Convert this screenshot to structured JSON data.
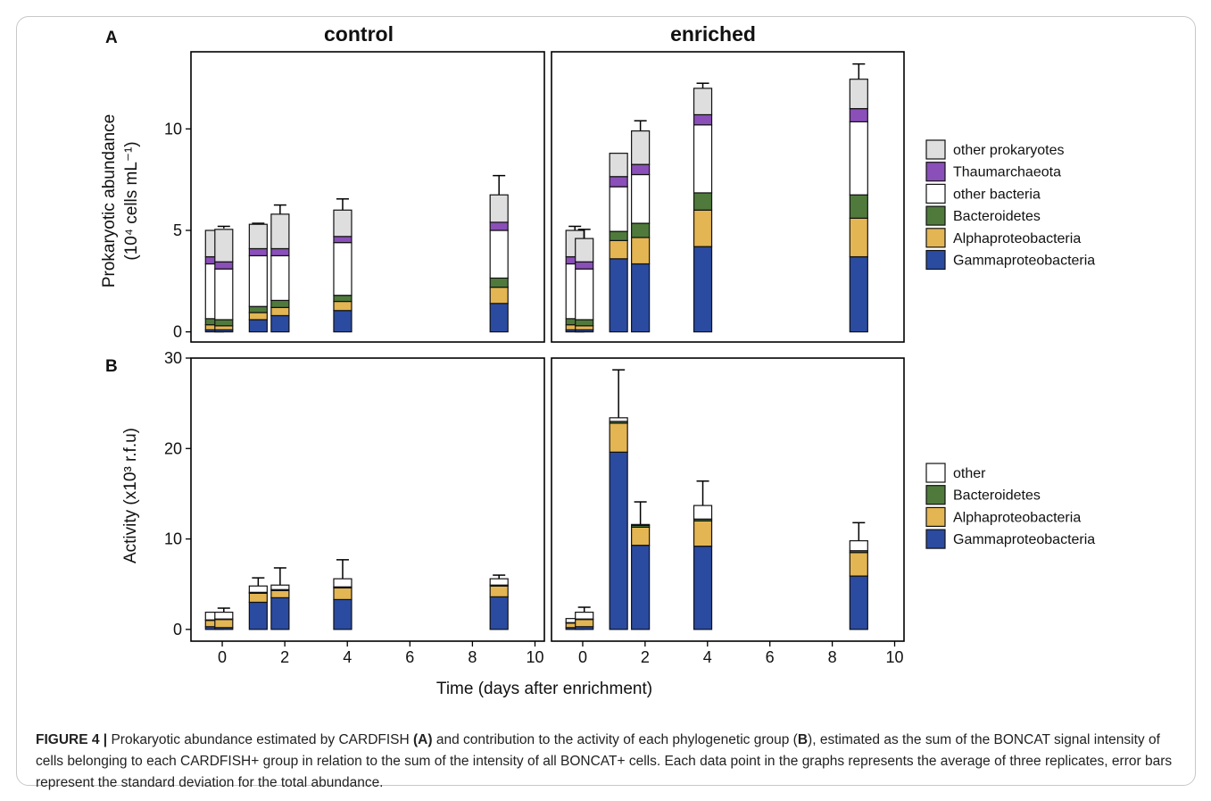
{
  "figure": {
    "panel_a_letter": "A",
    "panel_b_letter": "B",
    "facet_control": "control",
    "facet_enriched": "enriched",
    "x_axis_title": "Time (days after enrichment)",
    "a_y_label_line1": "Prokaryotic abundance",
    "a_y_label_line2": "(10⁴ cells mL⁻¹)",
    "b_y_label": "Activity (x10³ r.f.u)"
  },
  "caption": {
    "label": "FIGURE 4 |",
    "part1": " Prokaryotic abundance estimated by CARDFISH ",
    "a_ref": "(A)",
    "part2": " and contribution to the activity of each phylogenetic group (",
    "b_ref": "B",
    "part3": "), estimated as the sum of the BONCAT signal intensity of cells belonging to each CARDFISH+ group in relation to the sum of the intensity of all BONCAT+ cells. Each data point in the graphs represents the average of three replicates, error bars represent the standard deviation for the total abundance."
  },
  "colors": {
    "Gammaproteobacteria": "#2b4ba0",
    "Alphaproteobacteria": "#e3b553",
    "Bacteroidetes": "#4f7a3c",
    "other bacteria": "#ffffff",
    "Thaumarchaeota": "#8a4fb8",
    "other prokaryotes": "#dedede",
    "other": "#ffffff"
  },
  "chart_data": [
    {
      "type": "bar",
      "panel": "A",
      "stacked": true,
      "facets": [
        "control",
        "enriched"
      ],
      "xlabel": "Time (days after enrichment)",
      "ylabel": "Prokaryotic abundance (10⁴ cells mL⁻¹)",
      "ylim": [
        -0.5,
        13.8
      ],
      "y_ticks": [
        0,
        5,
        10
      ],
      "x_ticks": [
        0,
        2,
        4,
        6,
        8,
        10
      ],
      "xlim": [
        -1,
        10.3
      ],
      "series_order": [
        "Gammaproteobacteria",
        "Alphaproteobacteria",
        "Bacteroidetes",
        "other bacteria",
        "Thaumarchaeota",
        "other prokaryotes"
      ],
      "legend": [
        "other prokaryotes",
        "Thaumarchaeota",
        "other bacteria",
        "Bacteroidetes",
        "Alphaproteobacteria",
        "Gammaproteobacteria"
      ],
      "legend_position": "right",
      "data": {
        "control": [
          {
            "x": -0.25,
            "total": 5.0,
            "err": 0.0,
            "values": [
              0.1,
              0.25,
              0.3,
              2.7,
              0.35,
              1.3
            ]
          },
          {
            "x": 0.05,
            "total": 5.1,
            "err": 0.1,
            "values": [
              0.1,
              0.2,
              0.3,
              2.5,
              0.35,
              1.6
            ]
          },
          {
            "x": 1.15,
            "total": 5.3,
            "err": 0.05,
            "values": [
              0.6,
              0.35,
              0.3,
              2.5,
              0.35,
              1.2
            ]
          },
          {
            "x": 1.85,
            "total": 5.8,
            "err": 0.45,
            "values": [
              0.8,
              0.4,
              0.35,
              2.2,
              0.35,
              1.7
            ]
          },
          {
            "x": 3.85,
            "total": 6.0,
            "err": 0.55,
            "values": [
              1.05,
              0.45,
              0.3,
              2.6,
              0.3,
              1.3
            ]
          },
          {
            "x": 8.85,
            "total": 6.75,
            "err": 0.95,
            "values": [
              1.4,
              0.8,
              0.45,
              2.35,
              0.4,
              1.35
            ]
          }
        ],
        "enriched": [
          {
            "x": -0.25,
            "total": 5.0,
            "err": 0.2,
            "values": [
              0.1,
              0.25,
              0.3,
              2.7,
              0.35,
              1.3
            ]
          },
          {
            "x": 0.05,
            "total": 4.6,
            "err": 0.45,
            "values": [
              0.1,
              0.2,
              0.3,
              2.5,
              0.35,
              1.15
            ]
          },
          {
            "x": 1.15,
            "total": 8.8,
            "err": 0.0,
            "values": [
              3.6,
              0.9,
              0.45,
              2.2,
              0.5,
              1.15
            ]
          },
          {
            "x": 1.85,
            "total": 9.9,
            "err": 0.5,
            "values": [
              3.35,
              1.3,
              0.7,
              2.4,
              0.5,
              1.65
            ]
          },
          {
            "x": 3.85,
            "total": 12.0,
            "err": 0.25,
            "values": [
              4.2,
              1.8,
              0.85,
              3.35,
              0.5,
              1.3
            ]
          },
          {
            "x": 8.85,
            "total": 12.45,
            "err": 0.75,
            "values": [
              3.7,
              1.9,
              1.15,
              3.6,
              0.65,
              1.45
            ]
          }
        ]
      }
    },
    {
      "type": "bar",
      "panel": "B",
      "stacked": true,
      "facets": [
        "control",
        "enriched"
      ],
      "xlabel": "Time (days after enrichment)",
      "ylabel": "Activity (x10³ r.f.u)",
      "ylim": [
        -1.3,
        30
      ],
      "y_ticks": [
        0,
        10,
        20,
        30
      ],
      "x_ticks": [
        0,
        2,
        4,
        6,
        8,
        10
      ],
      "xlim": [
        -1,
        10.3
      ],
      "series_order": [
        "Gammaproteobacteria",
        "Alphaproteobacteria",
        "Bacteroidetes",
        "other"
      ],
      "legend": [
        "other",
        "Bacteroidetes",
        "Alphaproteobacteria",
        "Gammaproteobacteria"
      ],
      "legend_position": "right",
      "data": {
        "control": [
          {
            "x": -0.25,
            "total": 1.9,
            "err": 0.0,
            "values": [
              0.3,
              0.7,
              0.05,
              0.85
            ]
          },
          {
            "x": 0.05,
            "total": 1.9,
            "err": 0.45,
            "values": [
              0.2,
              0.9,
              0.05,
              0.75
            ]
          },
          {
            "x": 1.15,
            "total": 4.8,
            "err": 0.9,
            "values": [
              3.0,
              1.0,
              0.1,
              0.7
            ]
          },
          {
            "x": 1.85,
            "total": 4.9,
            "err": 1.9,
            "values": [
              3.5,
              0.8,
              0.1,
              0.5
            ]
          },
          {
            "x": 3.85,
            "total": 5.6,
            "err": 2.1,
            "values": [
              3.3,
              1.3,
              0.1,
              0.9
            ]
          },
          {
            "x": 8.85,
            "total": 5.6,
            "err": 0.4,
            "values": [
              3.6,
              1.2,
              0.1,
              0.7
            ]
          }
        ],
        "enriched": [
          {
            "x": -0.25,
            "total": 1.2,
            "err": 0.0,
            "values": [
              0.2,
              0.5,
              0.05,
              0.45
            ]
          },
          {
            "x": 0.05,
            "total": 1.9,
            "err": 0.55,
            "values": [
              0.3,
              0.8,
              0.05,
              0.75
            ]
          },
          {
            "x": 1.15,
            "total": 23.4,
            "err": 5.3,
            "values": [
              19.6,
              3.2,
              0.2,
              0.4
            ]
          },
          {
            "x": 1.85,
            "total": 11.6,
            "err": 2.5,
            "values": [
              9.3,
              2.0,
              0.2,
              0.1
            ]
          },
          {
            "x": 3.85,
            "total": 13.7,
            "err": 2.7,
            "values": [
              9.2,
              2.8,
              0.2,
              1.5
            ]
          },
          {
            "x": 8.85,
            "total": 9.8,
            "err": 2.0,
            "values": [
              5.9,
              2.6,
              0.2,
              1.1
            ]
          }
        ]
      }
    }
  ]
}
